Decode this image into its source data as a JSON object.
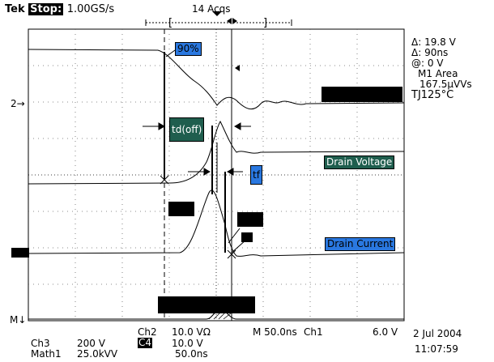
{
  "header": {
    "brand": "Tek",
    "run_state": "Stop:",
    "sample_rate": "1.00GS/s",
    "acquisitions": "14 Acqs"
  },
  "readout": {
    "delta_v": "Δ: 19.8 V",
    "delta_t": "Δ: 90ns",
    "at": "@: 0 V",
    "meas_name": "M1 Area",
    "meas_value": "167.5μVVs",
    "tj": "TJ125°C"
  },
  "markers": {
    "ch2": "2→",
    "ref": "M↓"
  },
  "labels": {
    "pct90": "90%",
    "td_off": "td(off)",
    "drain_voltage": "Drain Voltage",
    "tf": "tf",
    "drain_current": "Drain Current"
  },
  "footer": {
    "ch3_label": "Ch3",
    "ch3_scale": "200 V",
    "math1_label": "Math1",
    "math1_scale": "25.0kVV",
    "ch2_label": "Ch2",
    "ch2_scale": "10.0 VΩ",
    "c4_label": "C4",
    "c4_scale": "10.0 V",
    "timebase": "M 50.0ns",
    "math_time": "50.0ns",
    "trigger_src": "Ch1",
    "trigger_level": "6.0 V",
    "date": "2 Jul 2004",
    "time": "11:07:59"
  },
  "colors": {
    "label_blue": "#2a78e0",
    "label_green": "#1f5e4e"
  }
}
